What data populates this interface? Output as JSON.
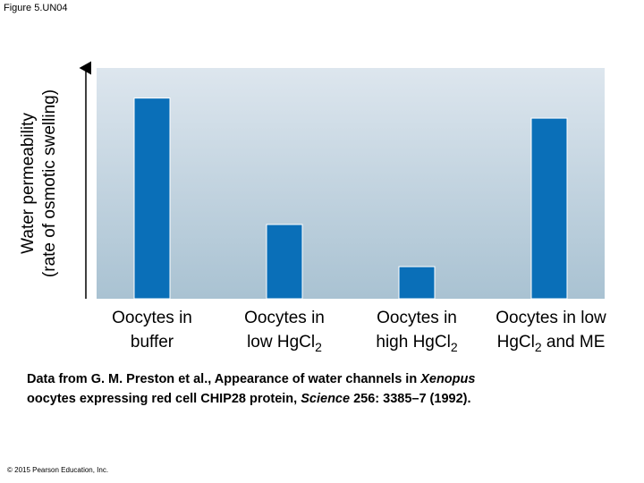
{
  "figure_label": "Figure 5.UN04",
  "chart_data": {
    "type": "bar",
    "ylabel_line1": "Water permeability",
    "ylabel_line2": "(rate of osmotic swelling)",
    "categories": [
      {
        "line1": "Oocytes in",
        "line2": "buffer"
      },
      {
        "line1": "Oocytes in",
        "line2": "low HgCl2"
      },
      {
        "line1": "Oocytes in",
        "line2": "high HgCl2"
      },
      {
        "line1": "Oocytes in low",
        "line2": "HgCl2 and ME"
      }
    ],
    "values": [
      100,
      37,
      16,
      90
    ],
    "ylim": [
      0,
      115
    ],
    "grid": false,
    "bar_color": "#0a6fb8",
    "background_top": "#dde6ee",
    "background_bottom": "#a9c2d2"
  },
  "citation": {
    "p1": "Data from G. M. Preston et al., Appearance of water channels in ",
    "i1": "Xenopus",
    "p2": "oocytes expressing red cell CHIP28 protein, ",
    "i2": "Science",
    "p3": " 256: 3385–7 (1992)."
  },
  "copyright": "© 2015 Pearson Education, Inc."
}
